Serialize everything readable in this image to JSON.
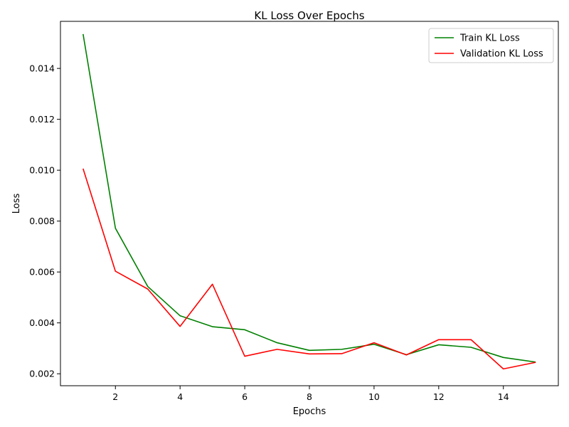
{
  "chart_data": {
    "type": "line",
    "title": "KL Loss Over Epochs",
    "xlabel": "Epochs",
    "ylabel": "Loss",
    "xlim": [
      0.3,
      15.7
    ],
    "ylim": [
      0.00153,
      0.01585
    ],
    "xticks": [
      2,
      4,
      6,
      8,
      10,
      12,
      14
    ],
    "yticks": [
      0.002,
      0.004,
      0.006,
      0.008,
      0.01,
      0.012,
      0.014
    ],
    "ytick_labels": [
      "0.002",
      "0.004",
      "0.006",
      "0.008",
      "0.010",
      "0.012",
      "0.014"
    ],
    "grid": false,
    "legend_position": "top-right",
    "x": [
      1,
      2,
      3,
      4,
      5,
      6,
      7,
      8,
      9,
      10,
      11,
      12,
      13,
      14,
      15
    ],
    "series": [
      {
        "name": "Train KL Loss",
        "color": "#008000",
        "values": [
          0.01535,
          0.00772,
          0.00543,
          0.00428,
          0.00385,
          0.00373,
          0.00322,
          0.00292,
          0.00296,
          0.00316,
          0.00275,
          0.00314,
          0.00304,
          0.00264,
          0.00246
        ]
      },
      {
        "name": "Validation KL Loss",
        "color": "#ff0000",
        "values": [
          0.01006,
          0.00603,
          0.00533,
          0.00386,
          0.00552,
          0.00269,
          0.00296,
          0.00278,
          0.00279,
          0.00322,
          0.00274,
          0.00334,
          0.00334,
          0.00219,
          0.00245
        ]
      }
    ]
  }
}
